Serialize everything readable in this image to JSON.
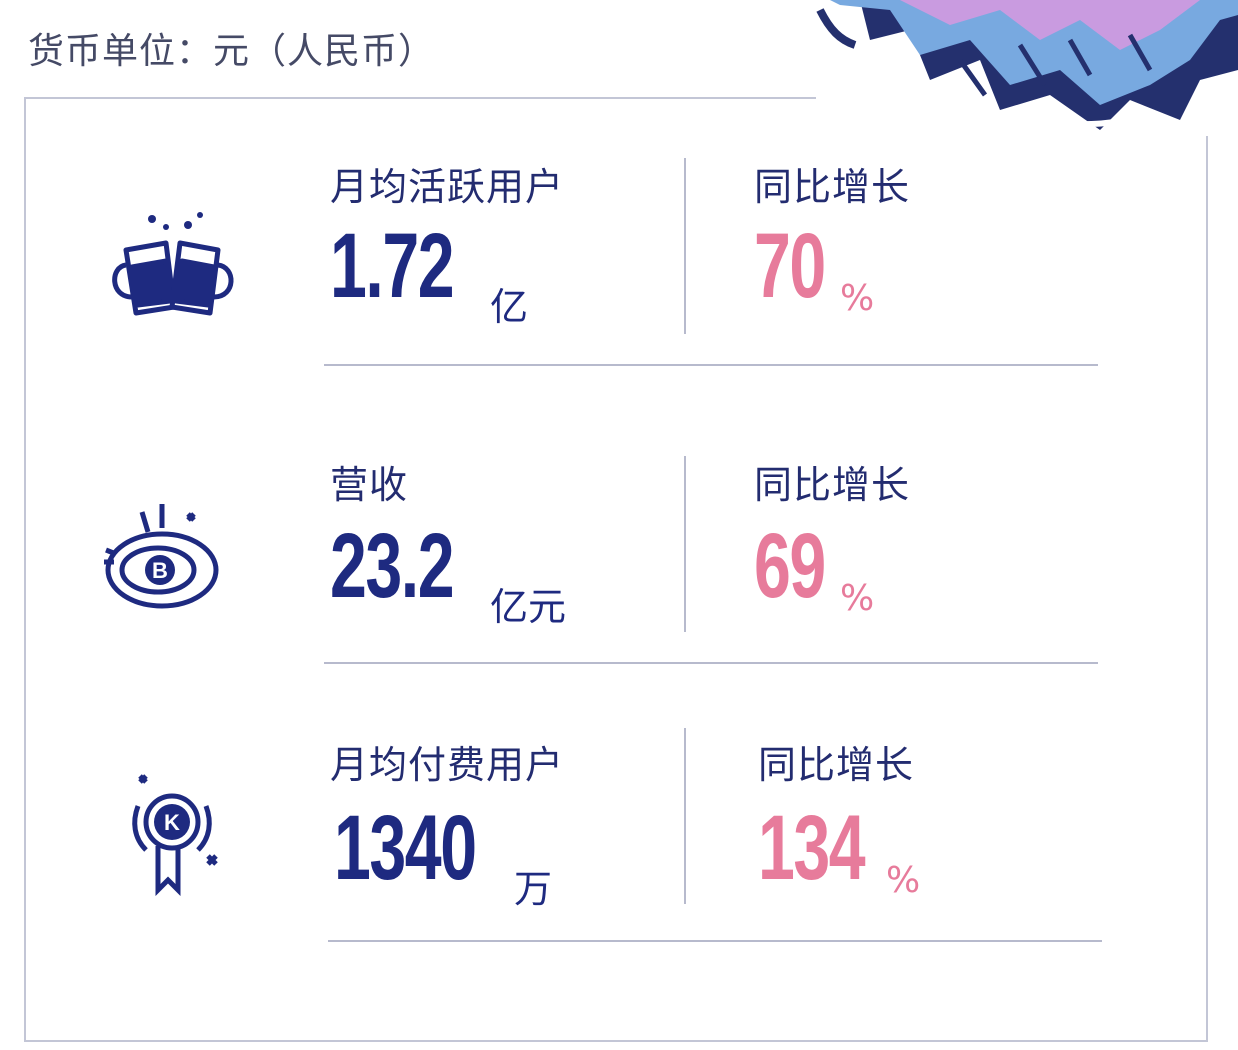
{
  "currency_note": "货币单位：元（人民币）",
  "metrics": [
    {
      "icon": "beer-mugs-icon",
      "label": "月均活跃用户",
      "value": "1.72",
      "unit": "亿",
      "growth_label": "同比增长",
      "growth_value": "70",
      "growth_unit": "%"
    },
    {
      "icon": "coin-revenue-icon",
      "label": "营收",
      "value": "23.2",
      "unit": "亿元",
      "growth_label": "同比增长",
      "growth_value": "69",
      "growth_unit": "%"
    },
    {
      "icon": "medal-badge-icon",
      "label": "月均付费用户",
      "value": "1340",
      "unit": "万",
      "growth_label": "同比增长",
      "growth_value": "134",
      "growth_unit": "%"
    }
  ],
  "colors": {
    "navy": "#1e2a80",
    "pink": "#e77b9b",
    "divider": "#b7bacd"
  }
}
